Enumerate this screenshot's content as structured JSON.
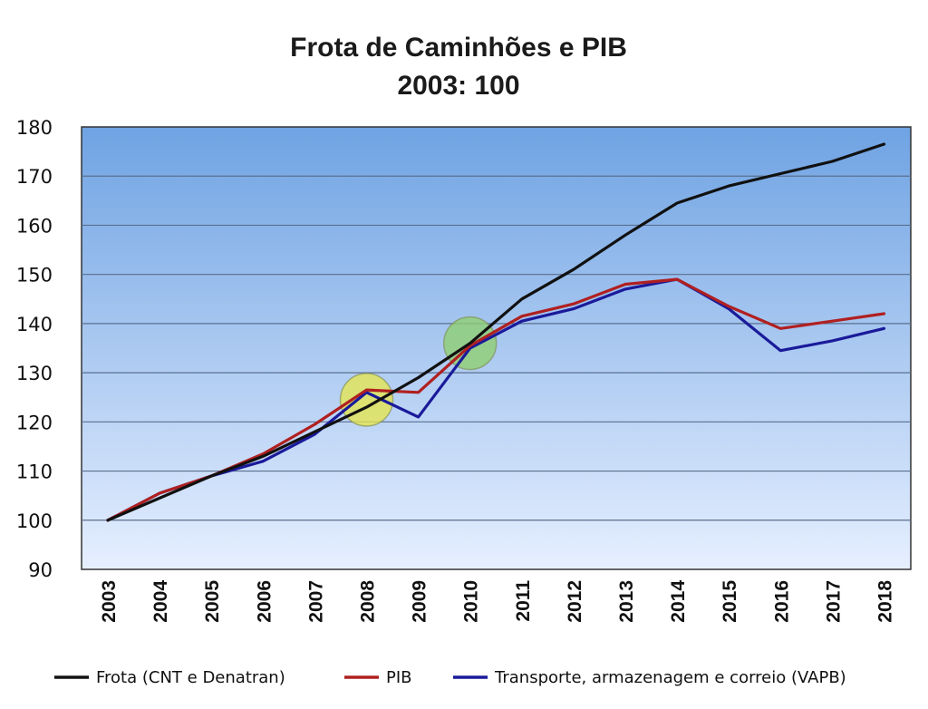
{
  "chart_data": {
    "type": "line",
    "title": "Frota de Caminhões e PIB",
    "subtitle": "2003: 100",
    "xlabel": "",
    "ylabel": "",
    "x": [
      "2003",
      "2004",
      "2005",
      "2006",
      "2007",
      "2008",
      "2009",
      "2010",
      "2011",
      "2012",
      "2013",
      "2014",
      "2015",
      "2016",
      "2017",
      "2018"
    ],
    "ylim": [
      90,
      180
    ],
    "yticks": [
      90,
      100,
      110,
      120,
      130,
      140,
      150,
      160,
      170,
      180
    ],
    "grid": true,
    "legend_position": "bottom",
    "series": [
      {
        "name": "Frota (CNT e Denatran)",
        "color": "#111111",
        "values": [
          100,
          104.5,
          109,
          113,
          118,
          123,
          129,
          136,
          145,
          151,
          158,
          164.5,
          168,
          170.5,
          173,
          176.5
        ]
      },
      {
        "name": "PIB",
        "color": "#b02020",
        "values": [
          100,
          105.5,
          109,
          113.5,
          119.5,
          126.5,
          126,
          135.5,
          141.5,
          144,
          148,
          149,
          143.5,
          139,
          140.5,
          142
        ]
      },
      {
        "name": "Transporte, armazenagem e correio (VAPB)",
        "color": "#1a1a9a",
        "values": [
          100,
          105.5,
          109,
          112,
          117.5,
          126,
          121,
          135,
          140.5,
          143,
          147,
          149,
          143,
          134.5,
          136.5,
          139
        ]
      }
    ],
    "highlights": [
      {
        "x": "2008",
        "y": 124.5,
        "color": "#e6e64d"
      },
      {
        "x": "2010",
        "y": 136,
        "color": "#8fcf70"
      }
    ],
    "plot_background": [
      "#6fa3e3",
      "#e6efff"
    ]
  }
}
